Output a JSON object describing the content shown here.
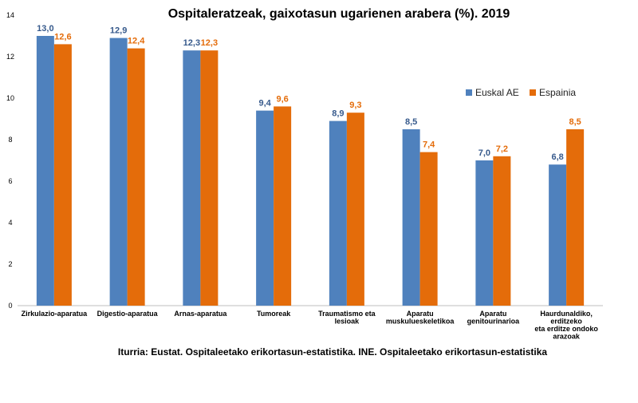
{
  "chart_data": {
    "type": "bar",
    "title": "Ospitaleratzeak, gaixotasun ugarienen arabera (%). 2019",
    "categories": [
      [
        "Zirkulazio-aparatua"
      ],
      [
        "Digestio-aparatua"
      ],
      [
        "Arnas-aparatua"
      ],
      [
        "Tumoreak"
      ],
      [
        "Traumatismo eta",
        "lesioak"
      ],
      [
        "Aparatu",
        "muskulueskeletikoa"
      ],
      [
        "Aparatu",
        "genitourinarioa"
      ],
      [
        "Haurdunaldiko,",
        "erditzeko",
        "eta erditze ondoko",
        "arazoak"
      ]
    ],
    "series": [
      {
        "name": "Euskal AE",
        "color": "#4F81BD",
        "label_color": "#375A8C",
        "values": [
          13.0,
          12.9,
          12.3,
          9.4,
          8.9,
          8.5,
          7.0,
          6.8
        ],
        "labels": [
          "13,0",
          "12,9",
          "12,3",
          "9,4",
          "8,9",
          "8,5",
          "7,0",
          "6,8"
        ]
      },
      {
        "name": "Espainia",
        "color": "#E46C0A",
        "label_color": "#E46C0A",
        "values": [
          12.6,
          12.4,
          12.3,
          9.6,
          9.3,
          7.4,
          7.2,
          8.5
        ],
        "labels": [
          "12,6",
          "12,4",
          "12,3",
          "9,6",
          "9,3",
          "7,4",
          "7,2",
          "8,5"
        ]
      }
    ],
    "yticks": [
      0,
      2,
      4,
      6,
      8,
      10,
      12,
      14
    ],
    "ylim": [
      0,
      14
    ],
    "legend_position": "right",
    "grid": false
  },
  "source": "Iturria: Eustat. Ospitaleetako erikortasun-estatistika. INE. Ospitaleetako erikortasun-estatistika"
}
